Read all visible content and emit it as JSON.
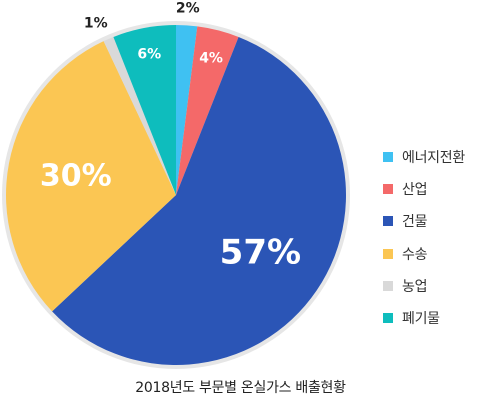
{
  "chart_data": {
    "type": "pie",
    "title": "2018년도 부문별 온실가스 배출현황",
    "slices": [
      {
        "label": "에너지전환",
        "value": 2,
        "value_label": "2%",
        "color": "#3fc1f2"
      },
      {
        "label": "산업",
        "value": 4,
        "value_label": "4%",
        "color": "#f46969"
      },
      {
        "label": "건물",
        "value": 57,
        "value_label": "57%",
        "color": "#2b55b6"
      },
      {
        "label": "수송",
        "value": 30,
        "value_label": "30%",
        "color": "#fbc653"
      },
      {
        "label": "농업",
        "value": 1,
        "value_label": "1%",
        "color": "#d9d9d9"
      },
      {
        "label": "폐기물",
        "value": 6,
        "value_label": "6%",
        "color": "#0ebdbd"
      }
    ],
    "legend_position": "right",
    "start_angle": "top, clockwise"
  },
  "colors": {
    "ring": "#e6e6e6"
  }
}
